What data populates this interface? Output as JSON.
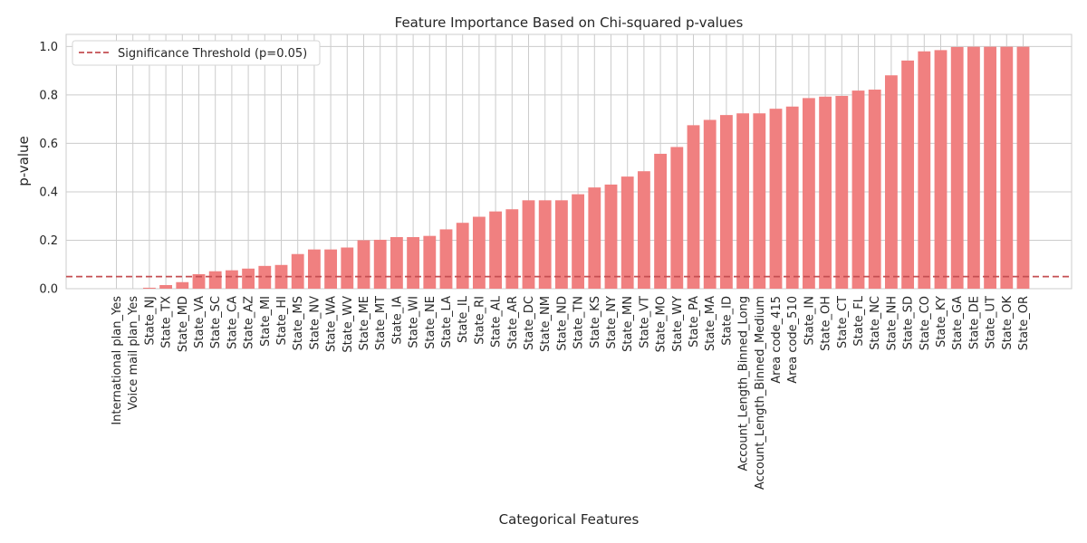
{
  "chart_data": {
    "type": "bar",
    "title": "Feature Importance Based on Chi-squared p-values",
    "xlabel": "Categorical Features",
    "ylabel": "p-value",
    "ylim": [
      0,
      1.05
    ],
    "yticks": [
      "0.0",
      "0.2",
      "0.4",
      "0.6",
      "0.8",
      "1.0"
    ],
    "ytick_values": [
      0,
      0.2,
      0.4,
      0.6,
      0.8,
      1.0
    ],
    "grid": true,
    "bar_color": "#f08080",
    "categories": [
      "International plan_Yes",
      "Voice mail plan_Yes",
      "State_NJ",
      "State_TX",
      "State_MD",
      "State_VA",
      "State_SC",
      "State_CA",
      "State_AZ",
      "State_MI",
      "State_HI",
      "State_MS",
      "State_NV",
      "State_WA",
      "State_WV",
      "State_ME",
      "State_MT",
      "State_IA",
      "State_WI",
      "State_NE",
      "State_LA",
      "State_IL",
      "State_RI",
      "State_AL",
      "State_AR",
      "State_DC",
      "State_NM",
      "State_ND",
      "State_TN",
      "State_KS",
      "State_NY",
      "State_MN",
      "State_VT",
      "State_MO",
      "State_WY",
      "State_PA",
      "State_MA",
      "State_ID",
      "Account_Length_Binned_Long",
      "Account_Length_Binned_Medium",
      "Area code_415",
      "Area code_510",
      "State_IN",
      "State_OH",
      "State_CT",
      "State_FL",
      "State_NC",
      "State_NH",
      "State_SD",
      "State_CO",
      "State_KY",
      "State_GA",
      "State_DE",
      "State_UT",
      "State_OK",
      "State_OR"
    ],
    "values": [
      0.0,
      0.0,
      0.004,
      0.015,
      0.027,
      0.06,
      0.072,
      0.076,
      0.083,
      0.094,
      0.098,
      0.143,
      0.162,
      0.162,
      0.17,
      0.2,
      0.202,
      0.213,
      0.213,
      0.218,
      0.245,
      0.272,
      0.297,
      0.319,
      0.328,
      0.365,
      0.365,
      0.365,
      0.39,
      0.418,
      0.43,
      0.463,
      0.485,
      0.557,
      0.585,
      0.675,
      0.697,
      0.717,
      0.724,
      0.724,
      0.743,
      0.752,
      0.787,
      0.793,
      0.796,
      0.818,
      0.822,
      0.881,
      0.942,
      0.98,
      0.985,
      0.998,
      0.999,
      0.999,
      0.999,
      0.999
    ],
    "threshold": {
      "value": 0.05,
      "label": "Significance Threshold (p=0.05)",
      "color": "#c44e52"
    },
    "legend_position": "top-left"
  }
}
